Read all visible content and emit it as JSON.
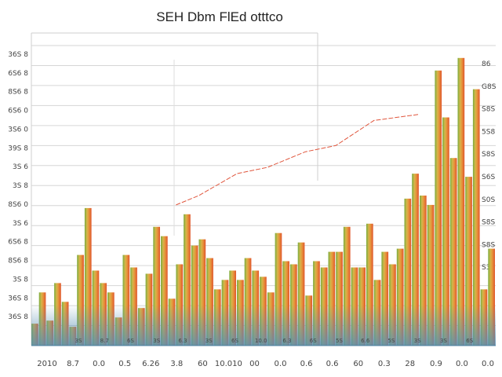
{
  "chart_data": {
    "type": "bar",
    "title": "SEH Dbm  FlEd otttco",
    "xlabel": "",
    "ylabel": "",
    "ylim": [
      0,
      100
    ],
    "grid": true,
    "y_tick_labels_left": [
      "36S 8",
      "6S6 8",
      "8S6 8",
      "6S6 0",
      "3S6 0",
      "39S 8",
      "3S 6",
      "3S 8",
      "8S6 0",
      "3S 6",
      "6S6 8",
      "8S6 8",
      "3S 8",
      "36S 8",
      "36S 8"
    ],
    "y_tick_labels_right": [
      "86",
      "G8S",
      "S8S",
      "5S8",
      "S8S",
      "S6S",
      "S0S",
      "S8S",
      "S8S",
      "S3S"
    ],
    "x_tick_labels": [
      "3S",
      "8.7",
      "6S",
      "3S",
      "6.3",
      "3S",
      "6S",
      "10.0",
      "6.3",
      "6S",
      "5S",
      "6.6",
      "5S",
      "3S",
      "3S",
      "6S"
    ],
    "x_labels": [
      "2010",
      "8.7",
      "0.0",
      "0.5",
      "6.26",
      "3.8",
      "60",
      "10.010",
      "00",
      "0.0",
      "0.6",
      "0.6",
      "60",
      "0.3",
      "28",
      "0.9",
      "0.0",
      "0.0"
    ],
    "colors": {
      "gradient_start": "#7aab3c",
      "gradient_mid1": "#d4b64a",
      "gradient_mid2": "#e6963c",
      "gradient_end": "#e0552c",
      "base_band": "#5a8fb0",
      "grid": "#d6d6d6",
      "trend_line": "#e0553c"
    },
    "values": [
      7,
      17,
      8,
      20,
      14,
      6,
      29,
      44,
      24,
      20,
      17,
      9,
      29,
      25,
      12,
      23,
      38,
      35,
      15,
      26,
      42,
      32,
      34,
      28,
      18,
      21,
      24,
      21,
      28,
      24,
      22,
      17,
      36,
      27,
      26,
      33,
      16,
      27,
      25,
      30,
      30,
      38,
      25,
      25,
      39,
      21,
      30,
      26,
      31,
      47,
      55,
      48,
      45,
      88,
      73,
      60,
      92,
      54,
      82,
      18,
      31
    ],
    "trend": [
      [
        19,
        45
      ],
      [
        22,
        48
      ],
      [
        27,
        55
      ],
      [
        31,
        57
      ],
      [
        36,
        62
      ],
      [
        40,
        64
      ],
      [
        45,
        72
      ],
      [
        51,
        74
      ]
    ]
  }
}
